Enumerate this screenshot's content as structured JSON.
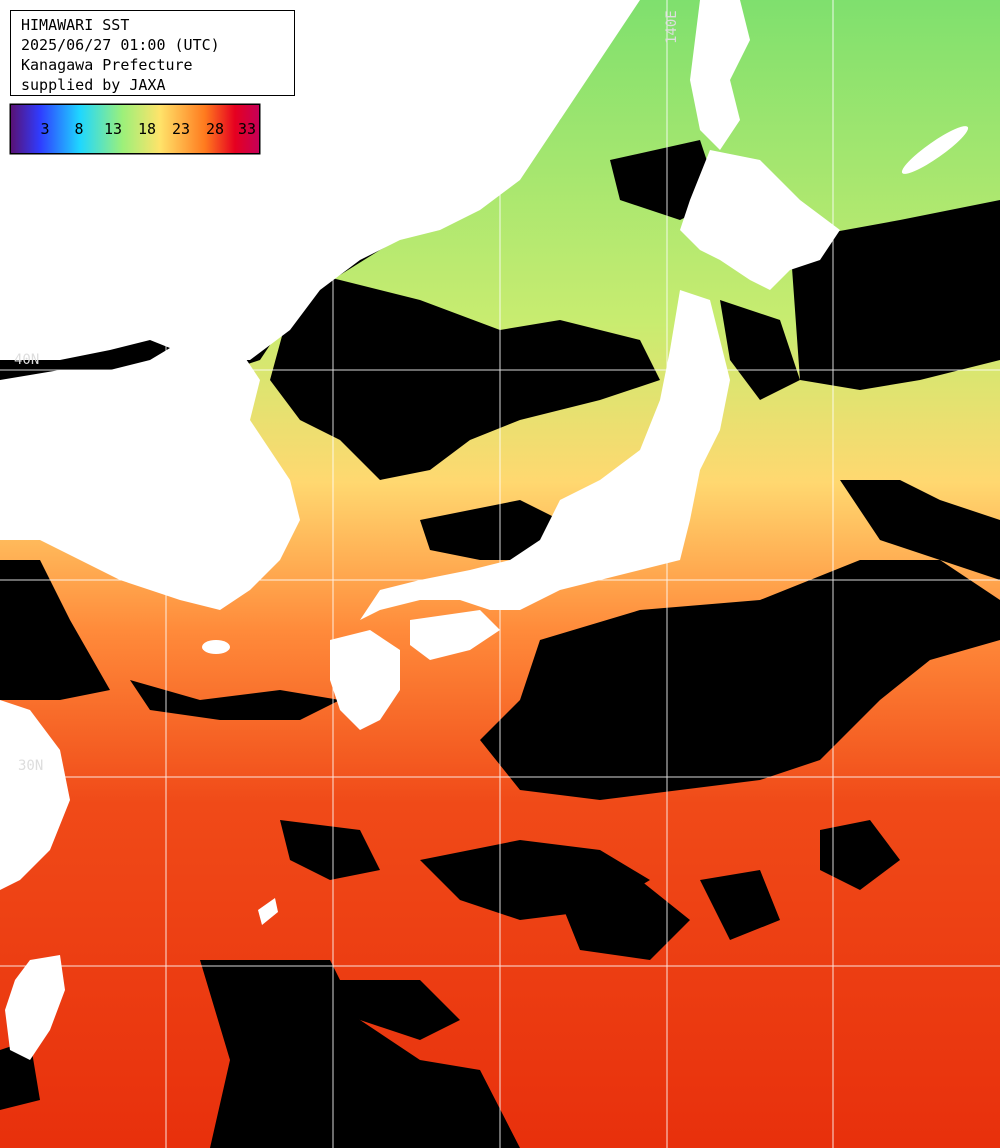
{
  "title": {
    "line1": "HIMAWARI SST",
    "line2": "2025/06/27 01:00 (UTC)",
    "line3": "Kanagawa Prefecture",
    "line4": "supplied by JAXA"
  },
  "legend": {
    "ticks": [
      "3",
      "8",
      "13",
      "18",
      "23",
      "28",
      "33"
    ],
    "colors": [
      "#5a1070",
      "#2f3cff",
      "#1fd7ff",
      "#9cf07a",
      "#ffe36a",
      "#ff7a1e",
      "#e60020",
      "#c4005a"
    ]
  },
  "grid_labels": {
    "lat_40": "40N",
    "lat_30": "30N",
    "lon_140": "140E"
  },
  "map": {
    "land_color": "#ffffff",
    "cloud_color": "#000000",
    "grid_color": "#ffffff"
  }
}
